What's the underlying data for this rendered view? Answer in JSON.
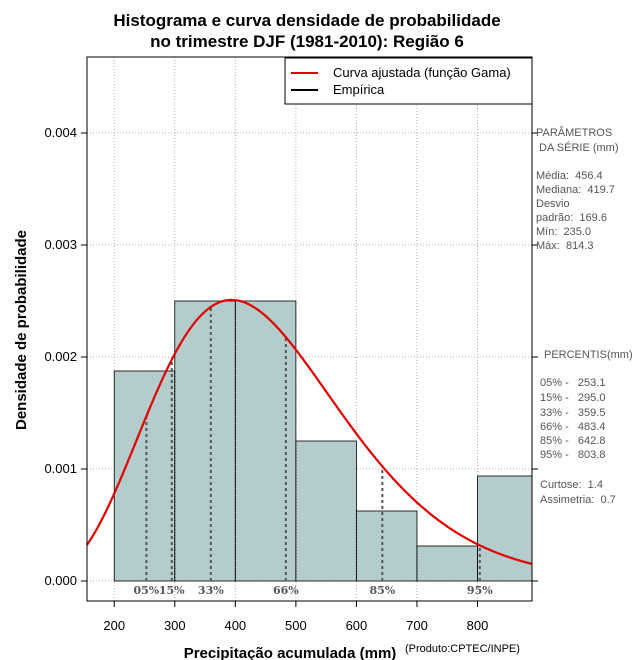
{
  "chart_data": {
    "type": "bar",
    "title_lines": [
      "Histograma e curva densidade de probabilidade",
      "no trimestre DJF (1981-2010): Região 6"
    ],
    "xlabel": "Precipitação acumulada (mm)",
    "ylabel": "Densidade de probabilidade",
    "credit": "(Produto:CPTEC/INPE)",
    "xlim": [
      155,
      890
    ],
    "ylim": [
      0,
      0.00465
    ],
    "x_ticks": [
      200,
      300,
      400,
      500,
      600,
      700,
      800
    ],
    "x_tick_labels": [
      "200",
      "300",
      "400",
      "500",
      "600",
      "700",
      "800"
    ],
    "y_ticks": [
      0,
      0.001,
      0.002,
      0.003,
      0.004
    ],
    "y_tick_labels": [
      "0.000",
      "0.001",
      "0.002",
      "0.003",
      "0.004"
    ],
    "grid": true,
    "bin_edges": [
      200,
      300,
      400,
      500,
      600,
      700,
      800,
      900
    ],
    "density": [
      0.001875,
      0.0025,
      0.0025,
      0.00125,
      0.000625,
      0.0003125,
      0.0009375
    ],
    "bar_color": "#b4cccb",
    "curve_color": "#e00000",
    "gamma_shape": 7.3,
    "gamma_scale": 62.5,
    "legend": {
      "position": "top-right",
      "entries": [
        {
          "label": "Curva ajustada (função Gama)",
          "color": "#e00000"
        },
        {
          "label": "Empírica",
          "color": "#000000"
        }
      ]
    },
    "percentiles": [
      {
        "label": "05%",
        "value": 253.1
      },
      {
        "label": "15%",
        "value": 295.0
      },
      {
        "label": "33%",
        "value": 359.5
      },
      {
        "label": "66%",
        "value": 483.4
      },
      {
        "label": "85%",
        "value": 642.8
      },
      {
        "label": "95%",
        "value": 803.8
      }
    ],
    "side_panel": {
      "stats_header": [
        "PARÂMETROS",
        " DA SÉRIE (mm)"
      ],
      "stats": [
        "Média:  456.4",
        "Mediana:  419.7",
        "Desvio",
        "padrão:  169.6",
        "Mín:  235.0",
        "Máx:  814.3"
      ],
      "percentis_header": "PERCENTIS(mm)",
      "percentis": [
        "05% -   253.1",
        "15% -   295.0",
        "33% -   359.5",
        "66% -   483.4",
        "85% -   642.8",
        "95% -   803.8"
      ],
      "shape_stats": [
        "Curtose:  1.4",
        "Assimetria:  0.7"
      ]
    }
  }
}
